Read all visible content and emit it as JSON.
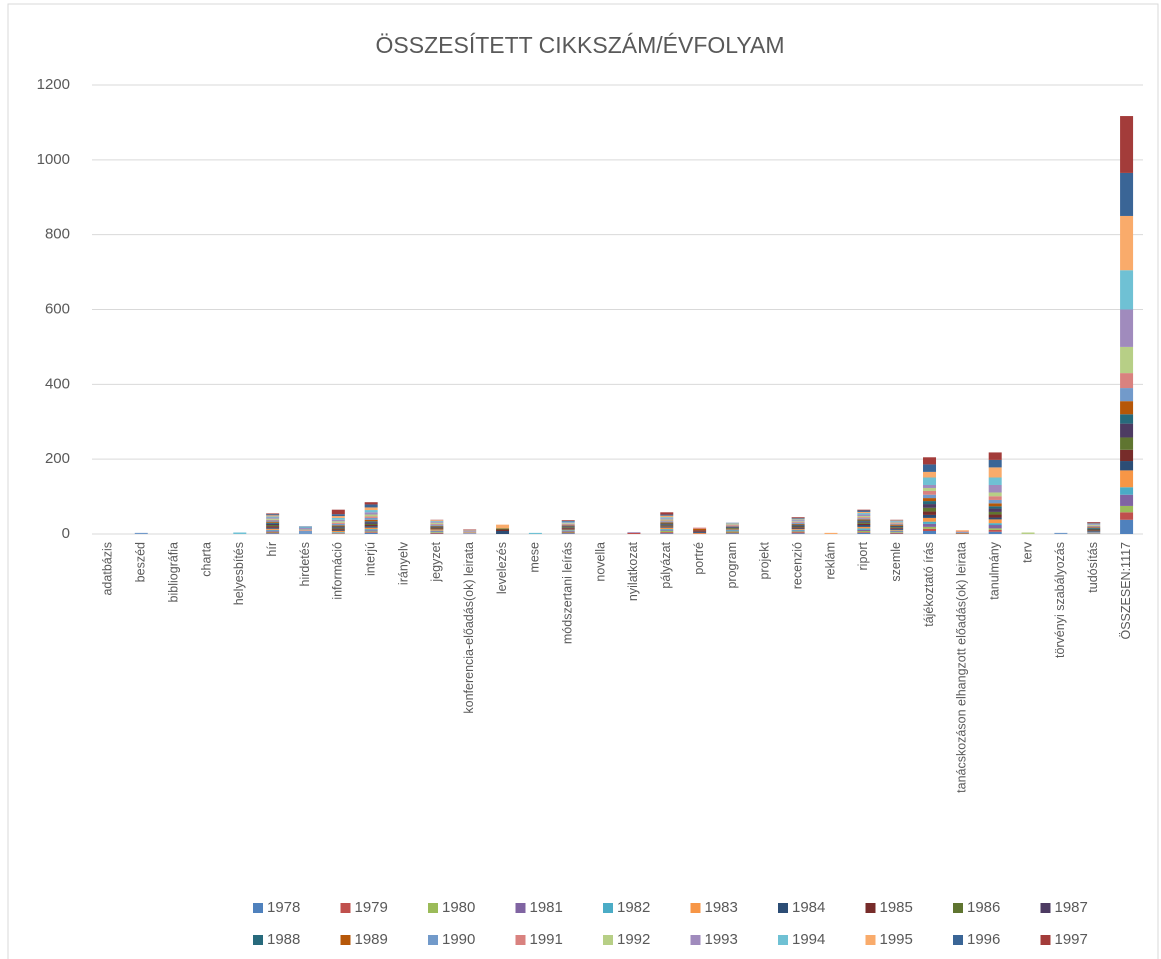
{
  "chart_data": {
    "type": "stacked_bar",
    "title": "ÖSSZESÍTETT CIKKSZÁM/ÉVFOLYAM",
    "categories": [
      "adatbázis",
      "beszéd",
      "bibliográfia",
      "charta",
      "helyesbítés",
      "hír",
      "hirdetés",
      "információ",
      "interjú",
      "irányelv",
      "jegyzet",
      "konferencia-előadás(ok) leirata",
      "levelezés",
      "mese",
      "módszertani leírás",
      "novella",
      "nyilatkozat",
      "pályázat",
      "portré",
      "program",
      "projekt",
      "recenzió",
      "reklám",
      "riport",
      "szemle",
      "tájékoztató írás",
      "tanácskozáson elhangzott előadás(ok) leirata",
      "tanulmány",
      "terv",
      "törvényi szabályozás",
      "tudósítás",
      "ÖSSZESEN:1117"
    ],
    "ylim": [
      0,
      1200
    ],
    "yticks": [
      0,
      200,
      400,
      600,
      800,
      1000,
      1200
    ],
    "grid": true,
    "legend": "bottom",
    "series": [
      {
        "name": "1978",
        "color": "#4f81bd",
        "values": [
          0,
          0,
          0,
          0,
          0,
          2,
          0,
          0,
          3,
          0,
          1,
          0,
          0,
          0,
          2,
          0,
          0,
          2,
          0,
          2,
          0,
          2,
          0,
          3,
          1,
          8,
          0,
          6,
          0,
          0,
          1,
          38
        ]
      },
      {
        "name": "1979",
        "color": "#c0504d",
        "values": [
          0,
          0,
          0,
          0,
          0,
          2,
          0,
          1,
          2,
          0,
          2,
          0,
          0,
          0,
          2,
          0,
          3,
          3,
          1,
          2,
          0,
          3,
          0,
          2,
          2,
          6,
          0,
          5,
          0,
          0,
          1,
          20
        ]
      },
      {
        "name": "1980",
        "color": "#9bbb59",
        "values": [
          0,
          0,
          0,
          0,
          0,
          2,
          0,
          1,
          2,
          0,
          2,
          0,
          0,
          0,
          2,
          0,
          0,
          3,
          0,
          3,
          0,
          2,
          0,
          3,
          2,
          5,
          0,
          4,
          0,
          0,
          1,
          17
        ]
      },
      {
        "name": "1981",
        "color": "#8064a2",
        "values": [
          0,
          0,
          0,
          0,
          0,
          3,
          0,
          1,
          3,
          0,
          2,
          0,
          0,
          0,
          2,
          0,
          0,
          2,
          0,
          2,
          0,
          2,
          0,
          3,
          2,
          8,
          0,
          9,
          0,
          0,
          1,
          30
        ]
      },
      {
        "name": "1982",
        "color": "#4bacc6",
        "values": [
          0,
          0,
          0,
          0,
          0,
          2,
          0,
          2,
          3,
          0,
          2,
          0,
          0,
          0,
          2,
          0,
          0,
          3,
          0,
          2,
          0,
          2,
          0,
          4,
          2,
          6,
          0,
          5,
          0,
          0,
          1,
          20
        ]
      },
      {
        "name": "1983",
        "color": "#f79646",
        "values": [
          0,
          0,
          0,
          0,
          0,
          3,
          0,
          3,
          4,
          0,
          3,
          0,
          0,
          0,
          2,
          0,
          0,
          4,
          2,
          1,
          0,
          2,
          0,
          4,
          2,
          10,
          0,
          10,
          0,
          0,
          1,
          45
        ]
      },
      {
        "name": "1984",
        "color": "#2c4d75",
        "values": [
          0,
          0,
          0,
          0,
          0,
          3,
          0,
          2,
          4,
          0,
          1,
          0,
          8,
          0,
          2,
          0,
          0,
          2,
          3,
          1,
          0,
          2,
          0,
          5,
          3,
          8,
          0,
          5,
          0,
          0,
          2,
          25
        ]
      },
      {
        "name": "1985",
        "color": "#772c2a",
        "values": [
          0,
          0,
          0,
          0,
          0,
          4,
          0,
          3,
          3,
          0,
          2,
          0,
          4,
          0,
          2,
          0,
          0,
          2,
          4,
          1,
          0,
          3,
          0,
          3,
          2,
          9,
          0,
          8,
          0,
          0,
          2,
          30
        ]
      },
      {
        "name": "1986",
        "color": "#5f7530",
        "values": [
          0,
          0,
          0,
          0,
          0,
          3,
          0,
          2,
          3,
          0,
          2,
          0,
          3,
          0,
          2,
          0,
          0,
          2,
          0,
          2,
          0,
          2,
          0,
          3,
          2,
          10,
          0,
          7,
          0,
          0,
          2,
          33
        ]
      },
      {
        "name": "1987",
        "color": "#4d3b62",
        "values": [
          0,
          0,
          0,
          0,
          0,
          3,
          0,
          3,
          4,
          0,
          2,
          0,
          0,
          0,
          2,
          0,
          0,
          3,
          0,
          2,
          0,
          3,
          0,
          3,
          2,
          10,
          0,
          9,
          0,
          0,
          2,
          37
        ]
      },
      {
        "name": "1988",
        "color": "#276a7c",
        "values": [
          0,
          0,
          0,
          0,
          0,
          3,
          0,
          2,
          3,
          0,
          1,
          0,
          0,
          0,
          1,
          0,
          0,
          2,
          0,
          1,
          0,
          2,
          0,
          3,
          2,
          8,
          0,
          6,
          0,
          0,
          2,
          25
        ]
      },
      {
        "name": "1989",
        "color": "#b65708",
        "values": [
          0,
          0,
          0,
          0,
          0,
          3,
          0,
          3,
          4,
          0,
          2,
          0,
          0,
          0,
          2,
          0,
          0,
          3,
          4,
          1,
          0,
          2,
          0,
          3,
          3,
          8,
          2,
          8,
          0,
          0,
          2,
          35
        ]
      },
      {
        "name": "1990",
        "color": "#729aca",
        "values": [
          0,
          3,
          0,
          0,
          0,
          3,
          8,
          4,
          5,
          0,
          3,
          2,
          0,
          0,
          2,
          0,
          0,
          3,
          0,
          2,
          0,
          3,
          0,
          3,
          2,
          9,
          3,
          9,
          0,
          3,
          2,
          35
        ]
      },
      {
        "name": "1991",
        "color": "#d9827f",
        "values": [
          0,
          0,
          0,
          0,
          0,
          2,
          2,
          3,
          4,
          0,
          2,
          2,
          0,
          0,
          2,
          0,
          0,
          2,
          3,
          2,
          0,
          2,
          0,
          3,
          2,
          10,
          2,
          10,
          0,
          0,
          2,
          40
        ]
      },
      {
        "name": "1992",
        "color": "#b7cf86",
        "values": [
          0,
          0,
          0,
          0,
          0,
          3,
          2,
          4,
          5,
          0,
          3,
          2,
          0,
          0,
          2,
          0,
          0,
          3,
          0,
          2,
          0,
          2,
          0,
          3,
          2,
          8,
          0,
          10,
          4,
          0,
          2,
          70
        ]
      },
      {
        "name": "1993",
        "color": "#a08bbd",
        "values": [
          0,
          0,
          0,
          0,
          0,
          3,
          4,
          4,
          6,
          0,
          3,
          2,
          0,
          0,
          2,
          0,
          2,
          3,
          0,
          1,
          0,
          3,
          0,
          4,
          2,
          8,
          0,
          20,
          0,
          0,
          2,
          100
        ]
      },
      {
        "name": "1994",
        "color": "#6fc1d4",
        "values": [
          0,
          0,
          0,
          0,
          4,
          3,
          2,
          5,
          6,
          0,
          2,
          1,
          0,
          3,
          2,
          0,
          0,
          3,
          0,
          1,
          0,
          2,
          0,
          4,
          2,
          20,
          0,
          20,
          0,
          0,
          1,
          105
        ]
      },
      {
        "name": "1995",
        "color": "#f9ab6b",
        "values": [
          0,
          0,
          0,
          0,
          0,
          3,
          0,
          5,
          7,
          0,
          2,
          1,
          10,
          0,
          0,
          0,
          0,
          4,
          0,
          1,
          0,
          2,
          3,
          3,
          1,
          15,
          3,
          27,
          0,
          0,
          1,
          145
        ]
      },
      {
        "name": "1996",
        "color": "#3a6596",
        "values": [
          0,
          0,
          0,
          0,
          0,
          3,
          2,
          5,
          8,
          0,
          0,
          0,
          0,
          0,
          2,
          0,
          0,
          3,
          0,
          1,
          0,
          2,
          0,
          4,
          1,
          20,
          0,
          20,
          0,
          0,
          2,
          115
        ]
      },
      {
        "name": "1997",
        "color": "#a33c3a",
        "values": [
          0,
          0,
          0,
          0,
          0,
          2,
          0,
          12,
          6,
          0,
          1,
          2,
          0,
          0,
          2,
          0,
          0,
          6,
          0,
          0,
          0,
          2,
          0,
          2,
          1,
          19,
          0,
          20,
          0,
          0,
          2,
          152
        ]
      }
    ]
  }
}
